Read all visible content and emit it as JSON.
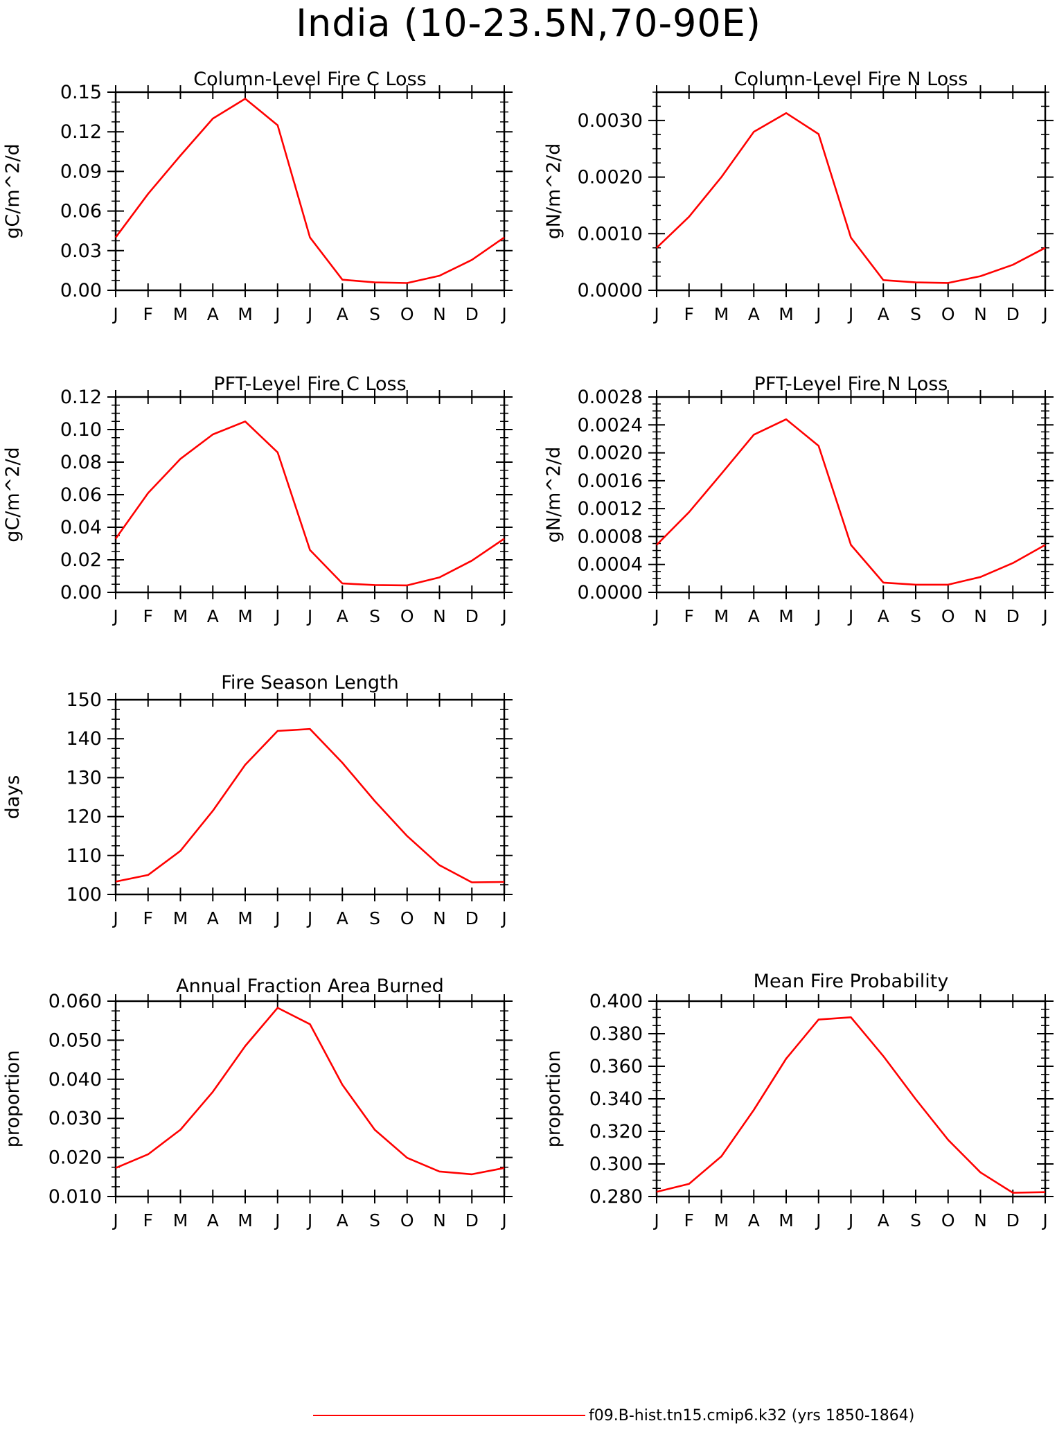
{
  "page_title": "India (10-23.5N,70-90E)",
  "legend": {
    "label": "f09.B-hist.tn15.cmip6.k32 (yrs 1850-1864)",
    "color": "#ff0000"
  },
  "colors": {
    "line": "#ff0000",
    "axis": "#000000",
    "background": "#ffffff"
  },
  "month_labels": [
    "J",
    "F",
    "M",
    "A",
    "M",
    "J",
    "J",
    "A",
    "S",
    "O",
    "N",
    "D",
    "J"
  ],
  "chart_data": [
    {
      "type": "line",
      "title": "Column-Level Fire C Loss",
      "ylabel": "gC/m^2/d",
      "ylim": [
        0,
        0.15
      ],
      "yticks": [
        "0.00",
        "0.03",
        "0.06",
        "0.09",
        "0.12",
        "0.15"
      ],
      "series": [
        {
          "values": [
            0.04,
            0.073,
            0.102,
            0.13,
            0.145,
            0.125,
            0.04,
            0.008,
            0.006,
            0.0055,
            0.011,
            0.023,
            0.04
          ]
        }
      ]
    },
    {
      "type": "line",
      "title": "Column-Level Fire N Loss",
      "ylabel": "gN/m^2/d",
      "ylim": [
        0,
        0.0035
      ],
      "yticks": [
        "0.0000",
        "0.0010",
        "0.0020",
        "0.0030"
      ],
      "series": [
        {
          "values": [
            0.00075,
            0.0013,
            0.002,
            0.0028,
            0.00313,
            0.00276,
            0.00093,
            0.00018,
            0.00014,
            0.00013,
            0.00025,
            0.00045,
            0.00075
          ]
        }
      ]
    },
    {
      "type": "line",
      "title": "PFT-Level Fire C Loss",
      "ylabel": "gC/m^2/d",
      "ylim": [
        0,
        0.12
      ],
      "yticks": [
        "0.00",
        "0.02",
        "0.04",
        "0.06",
        "0.08",
        "0.10",
        "0.12"
      ],
      "series": [
        {
          "values": [
            0.033,
            0.061,
            0.082,
            0.097,
            0.105,
            0.086,
            0.026,
            0.0055,
            0.0045,
            0.0043,
            0.0092,
            0.0195,
            0.033
          ]
        }
      ]
    },
    {
      "type": "line",
      "title": "PFT-Level Fire N Loss",
      "ylabel": "gN/m^2/d",
      "ylim": [
        0,
        0.0028
      ],
      "yticks": [
        "0.0000",
        "0.0004",
        "0.0008",
        "0.0012",
        "0.0016",
        "0.0020",
        "0.0024",
        "0.0028"
      ],
      "series": [
        {
          "values": [
            0.00068,
            0.00115,
            0.0017,
            0.00226,
            0.00248,
            0.0021,
            0.00068,
            0.00014,
            0.00011,
            0.00011,
            0.00022,
            0.00042,
            0.00068
          ]
        }
      ]
    },
    {
      "type": "line",
      "title": "Fire Season Length",
      "ylabel": "days",
      "ylim": [
        100,
        150
      ],
      "yticks": [
        "100",
        "110",
        "120",
        "130",
        "140",
        "150"
      ],
      "series": [
        {
          "values": [
            103.3,
            105.0,
            111.2,
            121.5,
            133.3,
            142.0,
            142.5,
            133.8,
            124.0,
            115.0,
            107.5,
            103.1,
            103.2
          ]
        }
      ]
    },
    {
      "type": "line",
      "title": "Annual Fraction Area Burned",
      "ylabel": "proportion",
      "ylim": [
        0.01,
        0.06
      ],
      "yticks": [
        "0.010",
        "0.020",
        "0.030",
        "0.040",
        "0.050",
        "0.060"
      ],
      "series": [
        {
          "values": [
            0.0173,
            0.0208,
            0.0271,
            0.0368,
            0.0485,
            0.0583,
            0.0541,
            0.0386,
            0.0271,
            0.0199,
            0.0164,
            0.0157,
            0.0173
          ]
        }
      ]
    },
    {
      "type": "line",
      "title": "Mean Fire Probability",
      "ylabel": "proportion",
      "ylim": [
        0.28,
        0.4
      ],
      "yticks": [
        "0.280",
        "0.300",
        "0.320",
        "0.340",
        "0.360",
        "0.380",
        "0.400"
      ],
      "series": [
        {
          "values": [
            0.2829,
            0.2878,
            0.3047,
            0.3332,
            0.3647,
            0.3887,
            0.3901,
            0.3662,
            0.3398,
            0.3148,
            0.2948,
            0.2823,
            0.2827
          ]
        }
      ]
    }
  ]
}
